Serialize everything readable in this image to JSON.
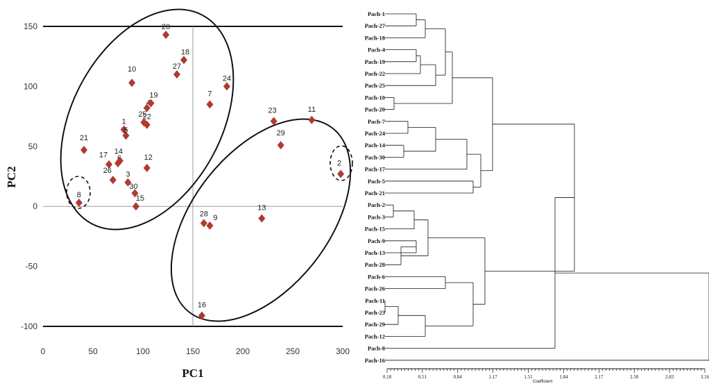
{
  "chart_data": [
    {
      "type": "scatter",
      "xlabel": "PC1",
      "ylabel": "PC2",
      "xlim": [
        0,
        300
      ],
      "ylim": [
        -100,
        150
      ],
      "x_ticks": [
        "0",
        "50",
        "100",
        "150",
        "200",
        "250",
        "300"
      ],
      "y_ticks": [
        "150",
        "100",
        "50",
        "0",
        "-50",
        "-100"
      ],
      "marker_color": "#b03a2e",
      "points": [
        {
          "label": "1",
          "x": 81,
          "y": 64
        },
        {
          "label": "2",
          "x": 298,
          "y": 27
        },
        {
          "label": "3",
          "x": 85,
          "y": 20
        },
        {
          "label": "4",
          "x": 104,
          "y": 82
        },
        {
          "label": "5",
          "x": 83,
          "y": 59
        },
        {
          "label": "6",
          "x": 75,
          "y": 36
        },
        {
          "label": "7",
          "x": 167,
          "y": 85
        },
        {
          "label": "8",
          "x": 36,
          "y": 3
        },
        {
          "label": "9",
          "x": 167,
          "y": -16
        },
        {
          "label": "10",
          "x": 89,
          "y": 103
        },
        {
          "label": "11",
          "x": 269,
          "y": 72
        },
        {
          "label": "12",
          "x": 104,
          "y": 32
        },
        {
          "label": "13",
          "x": 219,
          "y": -10
        },
        {
          "label": "14",
          "x": 77,
          "y": 38
        },
        {
          "label": "15",
          "x": 93,
          "y": 0
        },
        {
          "label": "16",
          "x": 159,
          "y": -91
        },
        {
          "label": "17",
          "x": 66,
          "y": 35
        },
        {
          "label": "18",
          "x": 141,
          "y": 122
        },
        {
          "label": "19",
          "x": 108,
          "y": 86
        },
        {
          "label": "20",
          "x": 123,
          "y": 143
        },
        {
          "label": "21",
          "x": 41,
          "y": 47
        },
        {
          "label": "22",
          "x": 104,
          "y": 68
        },
        {
          "label": "23",
          "x": 231,
          "y": 71
        },
        {
          "label": "24",
          "x": 184,
          "y": 100
        },
        {
          "label": "25",
          "x": 101,
          "y": 70
        },
        {
          "label": "26",
          "x": 70,
          "y": 22
        },
        {
          "label": "27",
          "x": 134,
          "y": 110
        },
        {
          "label": "28",
          "x": 161,
          "y": -14
        },
        {
          "label": "29",
          "x": 238,
          "y": 51
        },
        {
          "label": "30",
          "x": 92,
          "y": 11
        }
      ]
    },
    {
      "type": "dendrogram",
      "xlabel": "Coefficient",
      "x_ticks": [
        "0.18",
        "0.51",
        "0.84",
        "1.17",
        "1.51",
        "1.84",
        "2.17",
        "2.50",
        "2.83",
        "3.16"
      ],
      "leaves": [
        "Pach-1",
        "Pach-27",
        "Pach-18",
        "Pach-4",
        "Pach-19",
        "Pach-22",
        "Pach-25",
        "Pach-10",
        "Pach-20",
        "Pach-7",
        "Pach-24",
        "Pach-14",
        "Pach-30",
        "Pach-17",
        "Pach-5",
        "Pach-21",
        "Pach-2",
        "Pach-3",
        "Pach-15",
        "Pach-9",
        "Pach-13",
        "Pach-28",
        "Pach-6",
        "Pach-26",
        "Pach-11",
        "Pach-23",
        "Pach-29",
        "Pach-12",
        "Pach-8",
        "Pach-16"
      ]
    }
  ]
}
